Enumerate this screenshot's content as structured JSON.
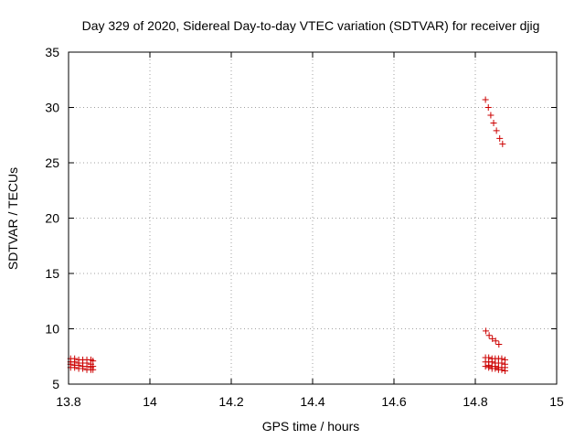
{
  "chart_data": {
    "type": "scatter",
    "title": "Day 329 of 2020, Sidereal Day-to-day VTEC variation (SDTVAR) for receiver djig",
    "xlabel": "GPS time / hours",
    "ylabel": "SDTVAR / TECUs",
    "xlim": [
      13.8,
      15
    ],
    "ylim": [
      5,
      35
    ],
    "x_ticks": [
      "13.8",
      "14",
      "14.2",
      "14.4",
      "14.6",
      "14.8",
      "15"
    ],
    "y_ticks": [
      "5",
      "10",
      "15",
      "20",
      "25",
      "30",
      "35"
    ],
    "x_tick_values": [
      13.8,
      14.0,
      14.2,
      14.4,
      14.6,
      14.8,
      15.0
    ],
    "y_tick_values": [
      5,
      10,
      15,
      20,
      25,
      30,
      35
    ],
    "grid": true,
    "marker": "+",
    "series_color": "#cc0000",
    "series": [
      {
        "name": "SDTVAR",
        "points": [
          [
            13.805,
            7.3
          ],
          [
            13.805,
            7.0
          ],
          [
            13.805,
            6.8
          ],
          [
            13.805,
            6.5
          ],
          [
            13.815,
            7.3
          ],
          [
            13.815,
            7.0
          ],
          [
            13.815,
            6.7
          ],
          [
            13.815,
            6.5
          ],
          [
            13.825,
            7.2
          ],
          [
            13.825,
            6.9
          ],
          [
            13.825,
            6.7
          ],
          [
            13.825,
            6.4
          ],
          [
            13.835,
            7.2
          ],
          [
            13.835,
            6.9
          ],
          [
            13.835,
            6.6
          ],
          [
            13.835,
            6.4
          ],
          [
            13.845,
            7.2
          ],
          [
            13.845,
            6.9
          ],
          [
            13.845,
            6.6
          ],
          [
            13.845,
            6.3
          ],
          [
            13.855,
            7.2
          ],
          [
            13.855,
            6.8
          ],
          [
            13.855,
            6.5
          ],
          [
            13.855,
            6.3
          ],
          [
            13.86,
            7.1
          ],
          [
            13.86,
            6.6
          ],
          [
            13.86,
            6.3
          ],
          [
            14.825,
            30.7
          ],
          [
            14.832,
            30.0
          ],
          [
            14.838,
            29.3
          ],
          [
            14.845,
            28.6
          ],
          [
            14.852,
            27.9
          ],
          [
            14.86,
            27.2
          ],
          [
            14.867,
            26.7
          ],
          [
            14.826,
            9.8
          ],
          [
            14.834,
            9.4
          ],
          [
            14.842,
            9.1
          ],
          [
            14.85,
            8.9
          ],
          [
            14.858,
            8.6
          ],
          [
            14.825,
            7.4
          ],
          [
            14.825,
            7.0
          ],
          [
            14.825,
            6.6
          ],
          [
            14.833,
            7.4
          ],
          [
            14.833,
            7.0
          ],
          [
            14.833,
            6.7
          ],
          [
            14.833,
            6.5
          ],
          [
            14.841,
            7.3
          ],
          [
            14.841,
            7.0
          ],
          [
            14.841,
            6.6
          ],
          [
            14.841,
            6.4
          ],
          [
            14.849,
            7.3
          ],
          [
            14.849,
            6.9
          ],
          [
            14.849,
            6.6
          ],
          [
            14.849,
            6.4
          ],
          [
            14.857,
            7.3
          ],
          [
            14.857,
            6.9
          ],
          [
            14.857,
            6.5
          ],
          [
            14.857,
            6.3
          ],
          [
            14.865,
            7.3
          ],
          [
            14.865,
            6.9
          ],
          [
            14.865,
            6.5
          ],
          [
            14.865,
            6.3
          ],
          [
            14.873,
            7.2
          ],
          [
            14.873,
            6.8
          ],
          [
            14.873,
            6.5
          ],
          [
            14.873,
            6.2
          ]
        ]
      }
    ]
  }
}
